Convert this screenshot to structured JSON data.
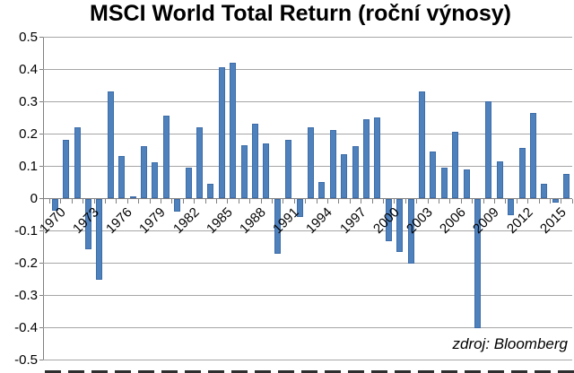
{
  "chart_data": {
    "type": "bar",
    "title": "MSCI World Total Return (roční výnosy)",
    "source_note": "zdroj: Bloomberg",
    "xlabel": "",
    "ylabel": "",
    "ylim": [
      -0.5,
      0.5
    ],
    "ytick_step": 0.1,
    "ytick_labels": [
      "0.5",
      "0.4",
      "0.3",
      "0.2",
      "0.1",
      "0",
      "-0.1",
      "-0.2",
      "-0.3",
      "-0.4",
      "-0.5"
    ],
    "xtick_labels": [
      "1970",
      "1973",
      "1976",
      "1979",
      "1982",
      "1985",
      "1988",
      "1991",
      "1994",
      "1997",
      "2000",
      "2003",
      "2006",
      "2009",
      "2012",
      "2015"
    ],
    "xtick_label_every": 3,
    "grid": true,
    "legend": false,
    "bar_color": "#4f81bd",
    "gridline_color": "#a6a6a6",
    "axis_color": "#808080",
    "categories": [
      1970,
      1971,
      1972,
      1973,
      1974,
      1975,
      1976,
      1977,
      1978,
      1979,
      1980,
      1981,
      1982,
      1983,
      1984,
      1985,
      1986,
      1987,
      1988,
      1989,
      1990,
      1991,
      1992,
      1993,
      1994,
      1995,
      1996,
      1997,
      1998,
      1999,
      2000,
      2001,
      2002,
      2003,
      2004,
      2005,
      2006,
      2007,
      2008,
      2009,
      2010,
      2011,
      2012,
      2013,
      2014,
      2015,
      2016
    ],
    "values": [
      -0.035,
      0.18,
      0.22,
      -0.155,
      -0.25,
      0.33,
      0.13,
      0.005,
      0.16,
      0.11,
      0.255,
      -0.04,
      0.095,
      0.22,
      0.045,
      0.405,
      0.42,
      0.165,
      0.23,
      0.17,
      -0.17,
      0.18,
      -0.055,
      0.22,
      0.05,
      0.21,
      0.135,
      0.16,
      0.245,
      0.25,
      -0.13,
      -0.165,
      -0.2,
      0.33,
      0.145,
      0.095,
      0.205,
      0.09,
      -0.4,
      0.3,
      0.115,
      -0.05,
      0.155,
      0.265,
      0.045,
      -0.01,
      0.075
    ]
  }
}
